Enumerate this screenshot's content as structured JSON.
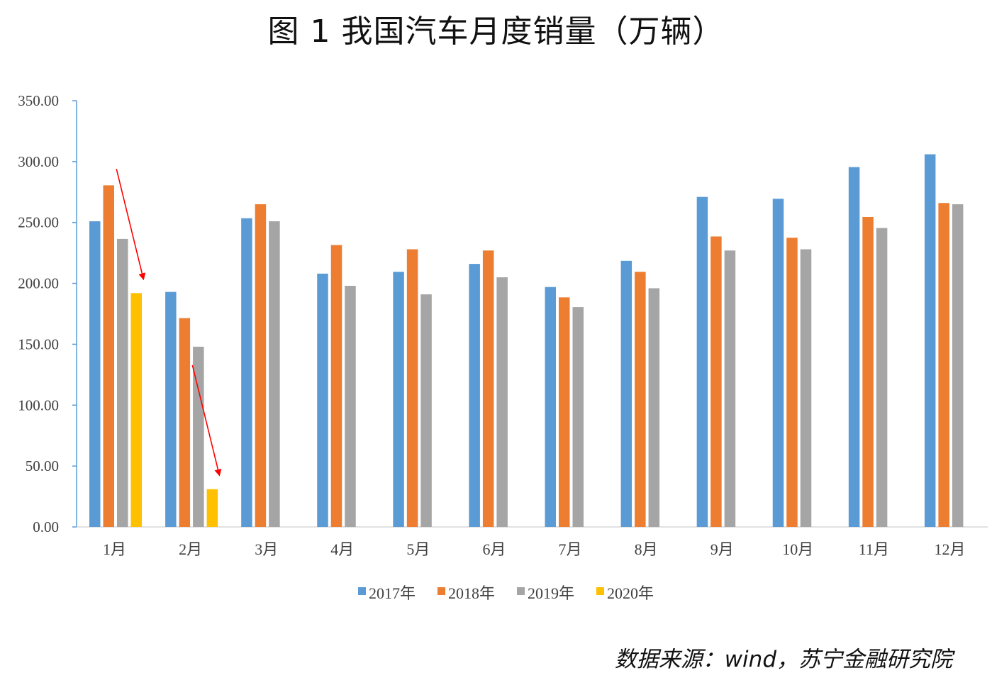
{
  "chart_data": {
    "type": "bar",
    "title": "图 1  我国汽车月度销量（万辆）",
    "source": "数据来源：wind，苏宁金融研究院",
    "categories": [
      "1月",
      "2月",
      "3月",
      "4月",
      "5月",
      "6月",
      "7月",
      "8月",
      "9月",
      "10月",
      "11月",
      "12月"
    ],
    "series": [
      {
        "name": "2017年",
        "color": "#5B9BD5",
        "values": [
          251.0,
          193.0,
          253.5,
          208.0,
          209.5,
          216.0,
          197.0,
          218.5,
          271.0,
          269.5,
          295.5,
          306.0
        ]
      },
      {
        "name": "2018年",
        "color": "#ED7D31",
        "values": [
          280.5,
          171.5,
          265.0,
          231.5,
          228.0,
          227.0,
          188.5,
          209.5,
          238.5,
          237.5,
          254.5,
          266.0
        ]
      },
      {
        "name": "2019年",
        "color": "#A5A5A5",
        "values": [
          236.5,
          148.0,
          251.0,
          198.0,
          191.0,
          205.0,
          180.5,
          196.0,
          227.0,
          228.0,
          245.5,
          265.0
        ]
      },
      {
        "name": "2020年",
        "color": "#FFC000",
        "values": [
          192.0,
          31.0,
          null,
          null,
          null,
          null,
          null,
          null,
          null,
          null,
          null,
          null
        ]
      }
    ],
    "y_ticks": [
      "0.00",
      "50.00",
      "100.00",
      "150.00",
      "200.00",
      "250.00",
      "300.00",
      "350.00"
    ],
    "ylim": [
      0,
      350
    ],
    "grid": false,
    "legend_position": "bottom",
    "annotations": [
      {
        "type": "arrow",
        "color": "#FF0000",
        "target_category": "1月",
        "target_series": "2020年"
      },
      {
        "type": "arrow",
        "color": "#FF0000",
        "target_category": "2月",
        "target_series": "2020年"
      }
    ]
  }
}
